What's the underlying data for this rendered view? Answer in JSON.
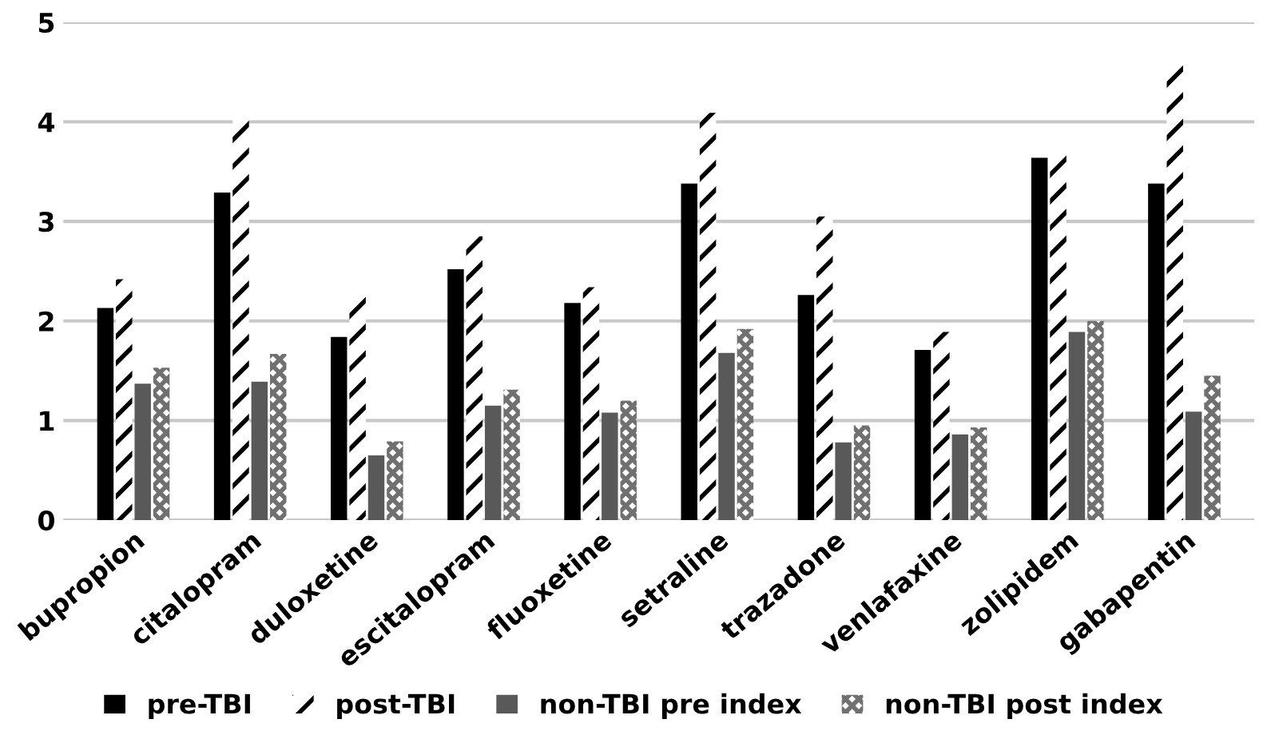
{
  "chart_data": {
    "type": "bar",
    "categories": [
      "bupropion",
      "citalopram",
      "duloxetine",
      "escitalopram",
      "fluoxetine",
      "setraline",
      "trazadone",
      "venlafaxine",
      "zolipidem",
      "gabapentin"
    ],
    "series": [
      {
        "name": "pre-TBI",
        "color": "#000000",
        "values": [
          2.13,
          3.29,
          1.84,
          2.52,
          2.18,
          3.38,
          2.26,
          1.71,
          3.64,
          3.38
        ]
      },
      {
        "name": "post-TBI",
        "color": "#000000",
        "values": [
          2.42,
          4.03,
          2.27,
          2.85,
          2.34,
          4.09,
          3.05,
          1.89,
          3.69,
          4.59
        ]
      },
      {
        "name": "non-TBI pre index",
        "color": "#595959",
        "values": [
          1.37,
          1.39,
          0.65,
          1.15,
          1.08,
          1.68,
          0.78,
          0.86,
          1.89,
          1.09
        ]
      },
      {
        "name": "non-TBI post index",
        "color": "#707070",
        "values": [
          1.53,
          1.67,
          0.79,
          1.31,
          1.2,
          1.92,
          0.95,
          0.93,
          2.0,
          1.45
        ]
      }
    ],
    "ylim": [
      0,
      5
    ],
    "yticks": [
      0,
      1,
      2,
      3,
      4,
      5
    ],
    "grid": "y",
    "legend": "bottom"
  }
}
